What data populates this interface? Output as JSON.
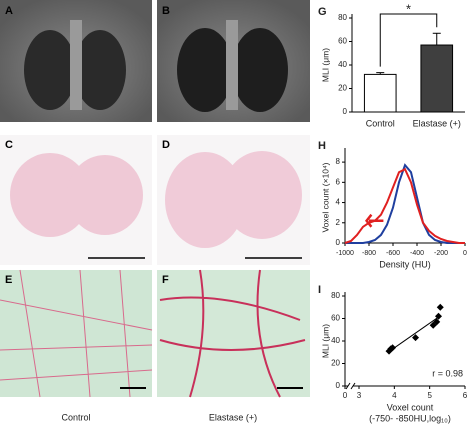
{
  "figure": {
    "panel_labels": [
      "A",
      "B",
      "C",
      "D",
      "E",
      "F"
    ],
    "column_labels": [
      "Control",
      "Elastase (+)"
    ]
  },
  "chart_data": [
    {
      "type": "bar",
      "panel": "G",
      "y_label": "MLI (μm)",
      "categories": [
        "Control",
        "Elastase (+)"
      ],
      "values": [
        32,
        57
      ],
      "errors": [
        1.5,
        10
      ],
      "colors": [
        "#ffffff",
        "#3f3f3f"
      ],
      "ylim": [
        0,
        80
      ],
      "yticks": [
        0,
        20,
        40,
        60,
        80
      ],
      "annotation": "*"
    },
    {
      "type": "line",
      "panel": "H",
      "x_label": "Density (HU)",
      "y_label": "Voxel count (×10⁴)",
      "x": [
        -1000,
        -950,
        -900,
        -850,
        -800,
        -750,
        -700,
        -650,
        -600,
        -550,
        -500,
        -450,
        -400,
        -350,
        -300,
        -250,
        -200,
        -150,
        -100,
        -50,
        0
      ],
      "series": [
        {
          "color": "#1f3f9f",
          "values": [
            0,
            0,
            0,
            0,
            0.1,
            0.3,
            0.8,
            1.8,
            3.5,
            6.0,
            7.7,
            7.0,
            4.5,
            2.0,
            0.8,
            0.3,
            0.1,
            0,
            0,
            0,
            0
          ]
        },
        {
          "color": "#e02020",
          "values": [
            0,
            0.2,
            0.8,
            1.6,
            2.0,
            2.2,
            2.8,
            4.0,
            5.5,
            7.0,
            7.3,
            6.0,
            3.8,
            2.0,
            1.2,
            0.7,
            0.4,
            0.2,
            0.1,
            0,
            0
          ]
        }
      ],
      "xlim": [
        -1000,
        0
      ],
      "xticks": [
        -1000,
        -800,
        -600,
        -400,
        -200,
        0
      ],
      "ylim": [
        0,
        9
      ],
      "yticks": [
        0,
        2,
        4,
        6,
        8
      ]
    },
    {
      "type": "scatter",
      "panel": "I",
      "x_label": [
        "Voxel count",
        "(-750- -850HU,log₁₀)"
      ],
      "y_label": "MLI (μm)",
      "x": [
        3.85,
        3.9,
        3.95,
        4.6,
        5.1,
        5.2,
        5.25,
        5.3
      ],
      "values": [
        31,
        33,
        34,
        43,
        54,
        57,
        62,
        70
      ],
      "color": "#000000",
      "xlim": [
        0,
        6
      ],
      "xticks": [
        0,
        3,
        4,
        5,
        6
      ],
      "axis_break": true,
      "ylim": [
        0,
        80
      ],
      "yticks": [
        0,
        20,
        40,
        60,
        80
      ],
      "annotation": "r = 0.98"
    }
  ]
}
